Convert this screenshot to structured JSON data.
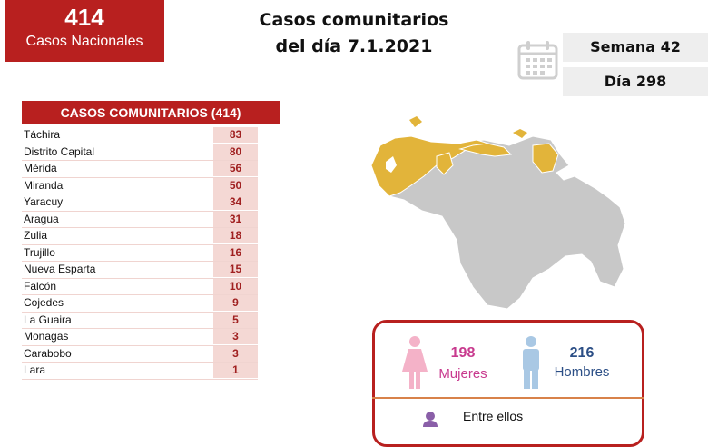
{
  "total": {
    "value": "414",
    "label": "Casos Nacionales"
  },
  "title": {
    "line1": "Casos comunitarios",
    "line2": "del día 7.1.2021"
  },
  "week_label": "Semana 42",
  "day_label": "Día 298",
  "table": {
    "header": "CASOS COMUNITARIOS (414)",
    "rows": [
      {
        "state": "Táchira",
        "count": "83"
      },
      {
        "state": "Distrito Capital",
        "count": "80"
      },
      {
        "state": "Mérida",
        "count": "56"
      },
      {
        "state": "Miranda",
        "count": "50"
      },
      {
        "state": "Yaracuy",
        "count": "34"
      },
      {
        "state": "Aragua",
        "count": "31"
      },
      {
        "state": "Zulia",
        "count": "18"
      },
      {
        "state": "Trujillo",
        "count": "16"
      },
      {
        "state": "Nueva Esparta",
        "count": "15"
      },
      {
        "state": "Falcón",
        "count": "10"
      },
      {
        "state": "Cojedes",
        "count": "9"
      },
      {
        "state": "La Guaira",
        "count": "5"
      },
      {
        "state": "Monagas",
        "count": "3"
      },
      {
        "state": "Carabobo",
        "count": "3"
      },
      {
        "state": "Lara",
        "count": "1"
      }
    ]
  },
  "gender": {
    "women_count": "198",
    "women_label": "Mujeres",
    "men_count": "216",
    "men_label": "Hombres",
    "subtext": "Entre ellos"
  },
  "map": {
    "highlight_color": "#e2b43a",
    "base_color": "#c8c8c8"
  },
  "colors": {
    "accent_red": "#b8201f",
    "women": "#c83a8e",
    "men": "#2c4f86"
  }
}
